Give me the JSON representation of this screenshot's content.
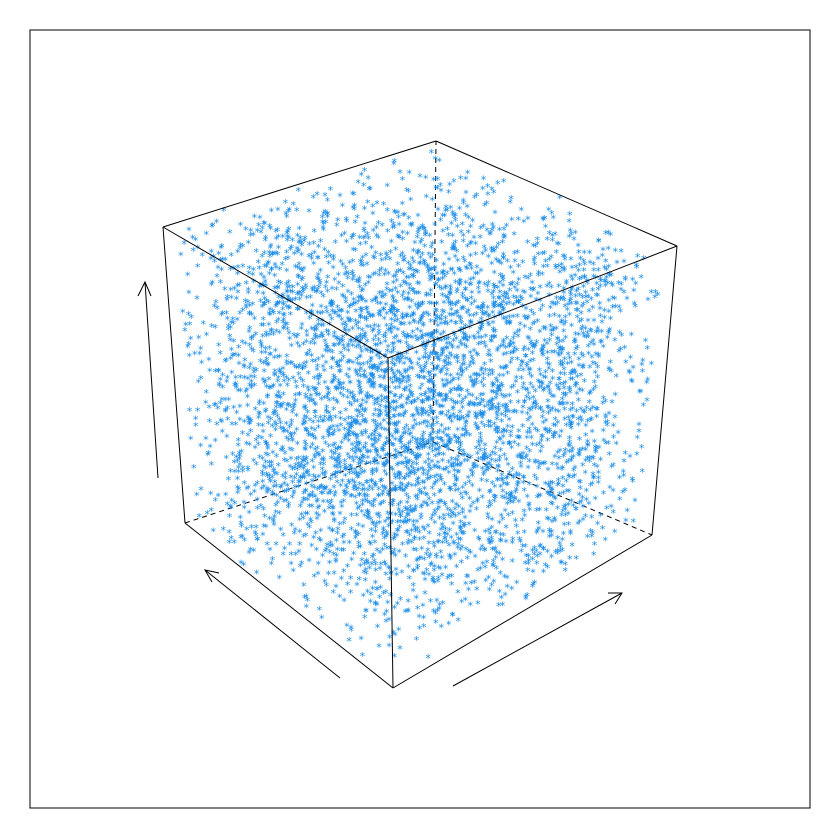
{
  "colors": {
    "background": "#ffffff",
    "frame": "#000000",
    "box_edge": "#000000",
    "points": "#1a8ce8"
  },
  "chart_data": {
    "type": "scatter",
    "dimensions": 3,
    "marker": "asterisk",
    "title": "",
    "xlabel": "",
    "ylabel": "",
    "zlabel": "",
    "axis_ticks": "none",
    "grid": false,
    "legend": "none",
    "box": true,
    "hidden_edges": "dashed",
    "axis_arrows": [
      "x",
      "y",
      "z"
    ],
    "xlim": [
      0,
      1
    ],
    "ylim": [
      0,
      1
    ],
    "zlim": [
      0,
      1
    ],
    "structure": {
      "description": "points lie on parallel planes in the unit cube",
      "plane_count": 15,
      "points_per_plane_approx": 320
    },
    "series": [
      {
        "values_generator": "lattice",
        "count_approx": 4800
      }
    ]
  }
}
